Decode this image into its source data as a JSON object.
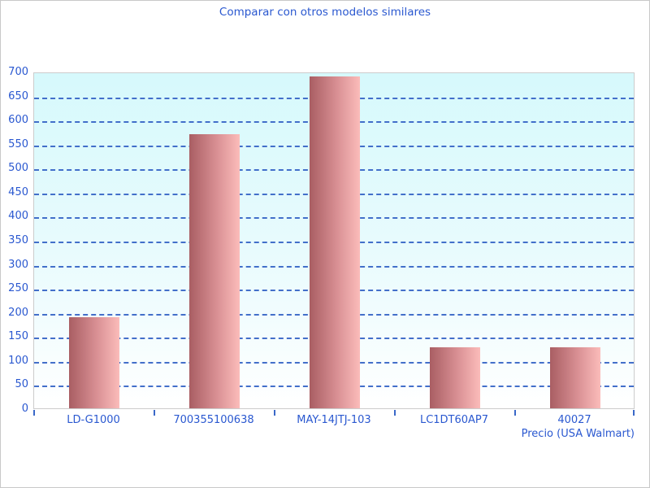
{
  "title": "Comparar con otros modelos similares",
  "colors": {
    "text_blue": "#2a58d0",
    "gridline_blue": "#3a68c8",
    "plot_border_gray": "#cccccc",
    "plot_bg_top_cyan": "#d6f9fc",
    "plot_bg_bottom": "#ffffff",
    "bar_gradient_dark": "#a95e63",
    "bar_gradient_light": "#fbbcba"
  },
  "chart_data": {
    "type": "bar",
    "title": "Comparar con otros modelos similares",
    "categories": [
      "LD-G1000",
      "700355100638",
      "MAY-14JTJ-103",
      "LC1DT60AP7",
      "40027"
    ],
    "values": [
      190,
      570,
      690,
      127,
      127
    ],
    "xlabel": "Precio (USA Walmart)",
    "ylabel": "",
    "ylim": [
      0,
      700
    ],
    "ytick_step": 50,
    "ytick_labels": [
      "0",
      "50",
      "100",
      "150",
      "200",
      "250",
      "300",
      "350",
      "400",
      "450",
      "500",
      "550",
      "600",
      "650",
      "700"
    ],
    "grid": "horizontal-dashed",
    "legend": "none",
    "bar_color": "pink-red horizontal gradient"
  }
}
